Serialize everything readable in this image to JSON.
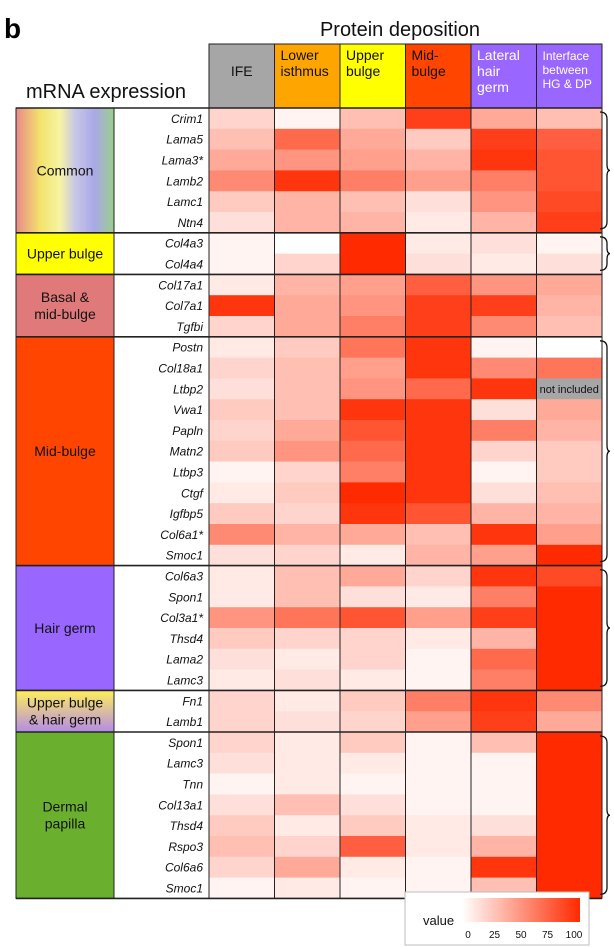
{
  "panel_label": "b",
  "top_title": "Protein deposition",
  "side_title": "mRNA expression",
  "not_included_label": "not included",
  "legend": {
    "title": "value",
    "ticks": [
      "0",
      "25",
      "50",
      "75",
      "100"
    ]
  },
  "colors": {
    "low": "#ffffff",
    "high": "#ff2a00",
    "gray": "#a6a6a6"
  },
  "columns": [
    {
      "label": [
        "IFE"
      ],
      "color": "#a6a6a6"
    },
    {
      "label": [
        "Lower",
        "isthmus"
      ],
      "color": "#ffa500"
    },
    {
      "label": [
        "Upper",
        "bulge"
      ],
      "color": "#ffff00"
    },
    {
      "label": [
        "Mid-",
        "bulge"
      ],
      "color": "#ff4500"
    },
    {
      "label": [
        "Lateral",
        "hair",
        "germ"
      ],
      "color": "#9966ff"
    },
    {
      "label": [
        "Interface",
        "between",
        "HG & DP"
      ],
      "color": "#9966ff"
    }
  ],
  "groups": [
    {
      "label": [
        "Common"
      ],
      "color": "rainbow",
      "count": 6
    },
    {
      "label": [
        "Upper bulge"
      ],
      "color": "#ffff00",
      "count": 2
    },
    {
      "label": [
        "Basal &",
        "mid-bulge"
      ],
      "color": "#e07a7a",
      "count": 3
    },
    {
      "label": [
        "Mid-bulge"
      ],
      "color": "#ff4500",
      "count": 11
    },
    {
      "label": [
        "Hair germ"
      ],
      "color": "#9966ff",
      "count": 6
    },
    {
      "label": [
        "Upper bulge",
        "& hair germ"
      ],
      "color": "#ffff00",
      "count": 2
    },
    {
      "label": [
        "Dermal",
        "papilla"
      ],
      "color": "#6ab02e",
      "count": 8
    }
  ],
  "chart_data": {
    "type": "heatmap",
    "title": "Protein deposition",
    "xlabel": "Protein deposition",
    "ylabel": "mRNA expression",
    "value_range": [
      0,
      100
    ],
    "columns": [
      "IFE",
      "Lower isthmus",
      "Upper bulge",
      "Mid-bulge",
      "Lateral hair germ",
      "Interface between HG & DP"
    ],
    "rows": [
      "Crim1",
      "Lama5",
      "Lama3*",
      "Lamb2",
      "Lamc1",
      "Ntn4",
      "Col4a3",
      "Col4a4",
      "Col17a1",
      "Col7a1",
      "Tgfbi",
      "Postn",
      "Col18a1",
      "Ltbp2",
      "Vwa1",
      "Papln",
      "Matn2",
      "Ltbp3",
      "Ctgf",
      "Igfbp5",
      "Col6a1*",
      "Smoc1",
      "Col6a3",
      "Spon1",
      "Col3a1*",
      "Thsd4",
      "Lama2",
      "Lamc3",
      "Fn1",
      "Lamb1",
      "Spon1",
      "Lamc3",
      "Tnn",
      "Col13a1",
      "Thsd4",
      "Rspo3",
      "Col6a6",
      "Smoc1"
    ],
    "values": [
      [
        20,
        5,
        30,
        90,
        40,
        30
      ],
      [
        30,
        70,
        40,
        25,
        90,
        75
      ],
      [
        40,
        50,
        45,
        35,
        95,
        80
      ],
      [
        55,
        95,
        60,
        45,
        60,
        80
      ],
      [
        25,
        35,
        30,
        15,
        50,
        85
      ],
      [
        15,
        35,
        35,
        10,
        35,
        90
      ],
      [
        5,
        0,
        100,
        10,
        15,
        5
      ],
      [
        5,
        20,
        100,
        15,
        10,
        15
      ],
      [
        10,
        35,
        45,
        75,
        50,
        40
      ],
      [
        95,
        40,
        50,
        90,
        90,
        35
      ],
      [
        20,
        40,
        60,
        90,
        55,
        30
      ],
      [
        10,
        25,
        65,
        95,
        5,
        0
      ],
      [
        20,
        30,
        45,
        95,
        55,
        65
      ],
      [
        15,
        30,
        50,
        70,
        95,
        null
      ],
      [
        25,
        30,
        95,
        95,
        15,
        40
      ],
      [
        20,
        40,
        80,
        95,
        60,
        35
      ],
      [
        25,
        50,
        70,
        95,
        20,
        25
      ],
      [
        5,
        20,
        60,
        95,
        5,
        25
      ],
      [
        10,
        25,
        100,
        95,
        15,
        30
      ],
      [
        25,
        20,
        95,
        80,
        35,
        35
      ],
      [
        55,
        35,
        40,
        30,
        95,
        45
      ],
      [
        15,
        20,
        10,
        35,
        45,
        100
      ],
      [
        10,
        30,
        40,
        20,
        95,
        85
      ],
      [
        10,
        30,
        15,
        10,
        60,
        100
      ],
      [
        50,
        65,
        80,
        45,
        90,
        100
      ],
      [
        25,
        20,
        20,
        10,
        35,
        100
      ],
      [
        15,
        10,
        20,
        5,
        70,
        100
      ],
      [
        10,
        15,
        10,
        5,
        60,
        100
      ],
      [
        20,
        10,
        25,
        60,
        95,
        55
      ],
      [
        20,
        15,
        20,
        45,
        90,
        40
      ],
      [
        20,
        10,
        25,
        5,
        30,
        100
      ],
      [
        15,
        10,
        10,
        5,
        5,
        100
      ],
      [
        5,
        10,
        5,
        5,
        5,
        100
      ],
      [
        15,
        30,
        15,
        5,
        5,
        100
      ],
      [
        25,
        10,
        25,
        10,
        15,
        100
      ],
      [
        30,
        20,
        75,
        10,
        35,
        100
      ],
      [
        20,
        40,
        10,
        5,
        95,
        100
      ],
      [
        5,
        10,
        5,
        5,
        30,
        100
      ]
    ],
    "brackets": 5
  }
}
